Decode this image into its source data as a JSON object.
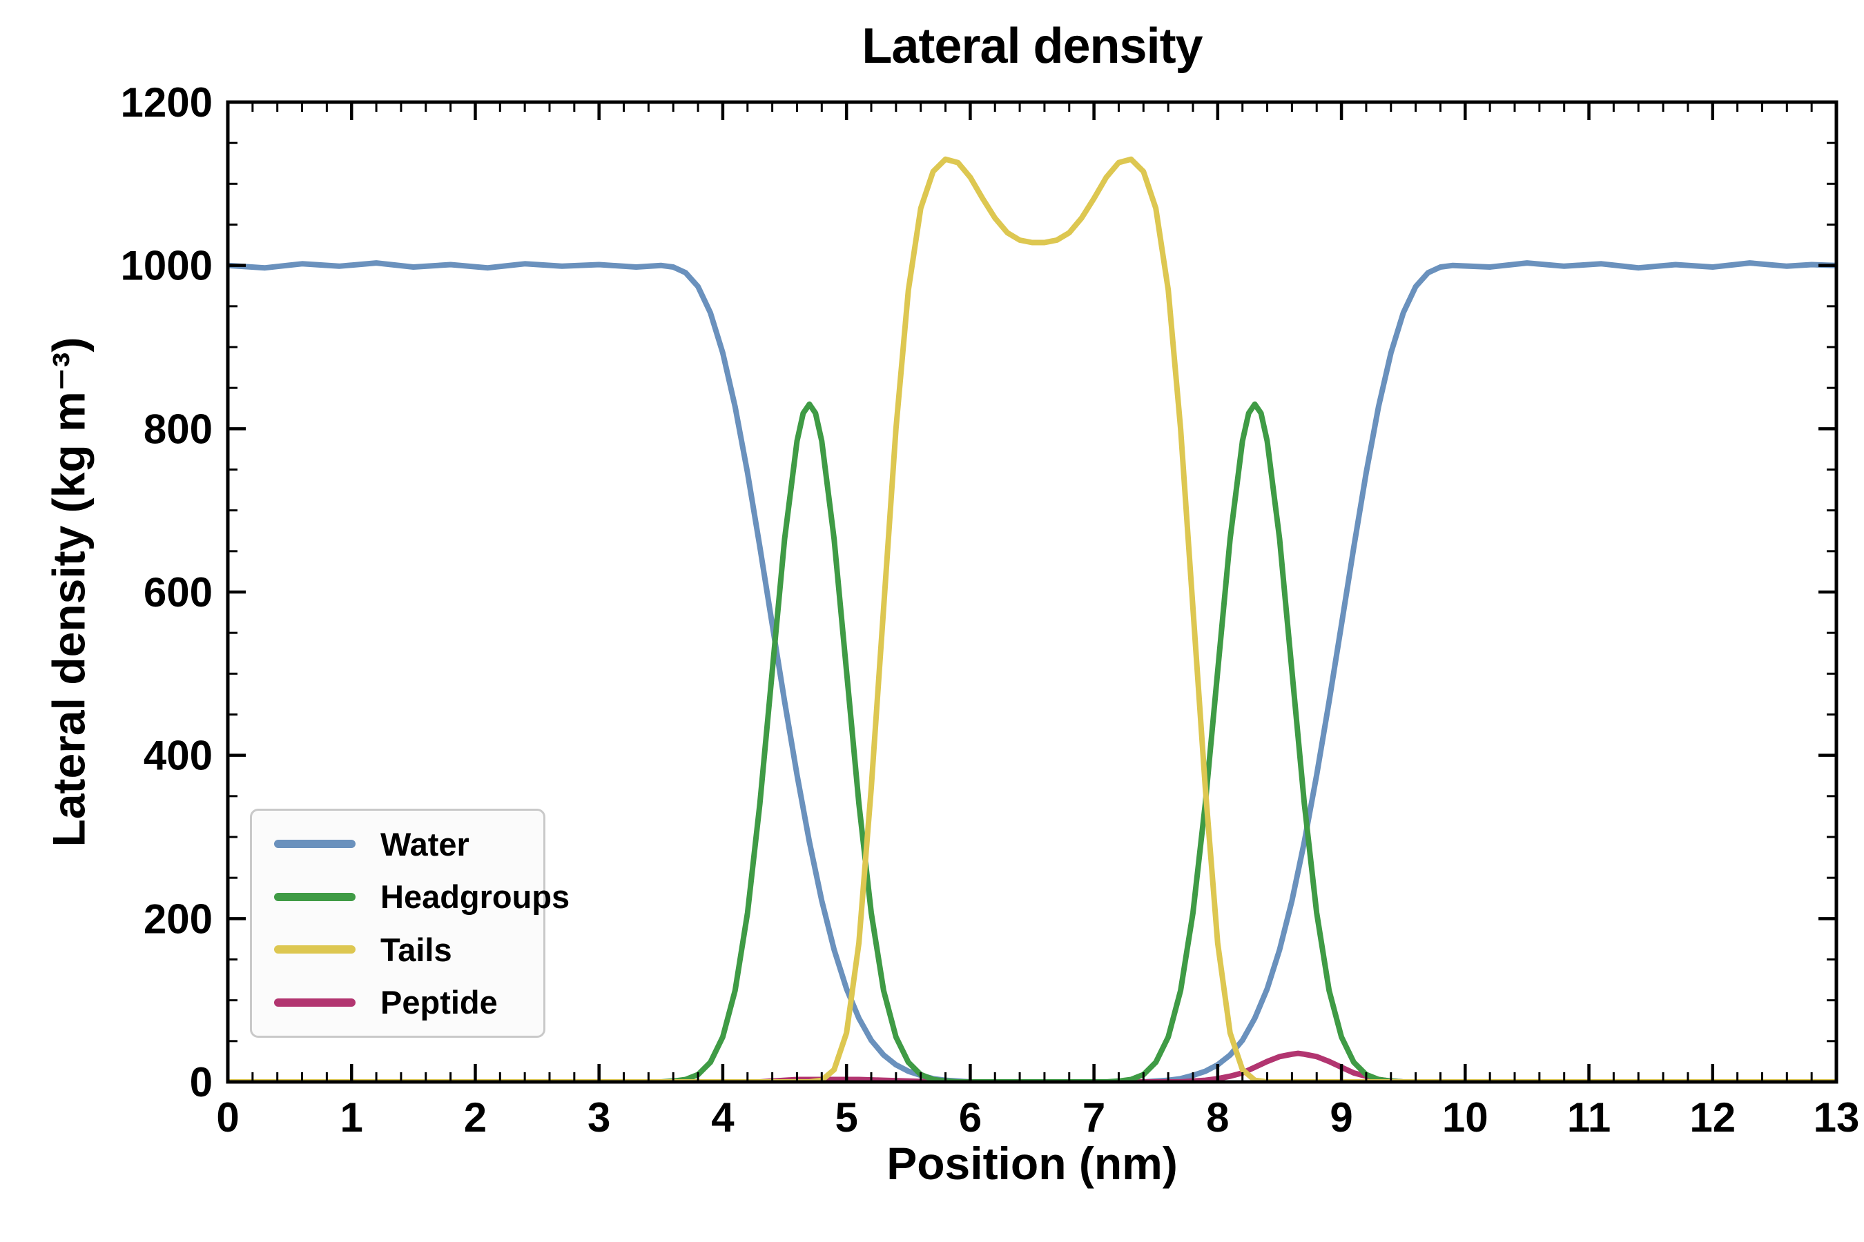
{
  "chart_data": {
    "type": "line",
    "title": "Lateral density",
    "xlabel": "Position (nm)",
    "ylabel": "Lateral density (kg m⁻³)",
    "xlim": [
      0,
      13
    ],
    "ylim": [
      0,
      1200
    ],
    "x_ticks": [
      0,
      1,
      2,
      3,
      4,
      5,
      6,
      7,
      8,
      9,
      10,
      11,
      12,
      13
    ],
    "y_ticks": [
      0,
      200,
      400,
      600,
      800,
      1000,
      1200
    ],
    "x_minor_step": 0.2,
    "y_minor_step": 50,
    "grid": false,
    "legend_position": "lower-left",
    "background": "#ffffff",
    "axis_color": "#000000",
    "legend_bg": "#fbfbfb",
    "legend_border": "#c9c9c9",
    "series": [
      {
        "name": "Water",
        "color": "#6a91bd",
        "points": [
          [
            0.0,
            1000
          ],
          [
            0.3,
            997
          ],
          [
            0.6,
            1002
          ],
          [
            0.9,
            999
          ],
          [
            1.2,
            1003
          ],
          [
            1.5,
            998
          ],
          [
            1.8,
            1001
          ],
          [
            2.1,
            997
          ],
          [
            2.4,
            1002
          ],
          [
            2.7,
            999
          ],
          [
            3.0,
            1001
          ],
          [
            3.3,
            998
          ],
          [
            3.5,
            1000
          ],
          [
            3.6,
            998
          ],
          [
            3.7,
            991
          ],
          [
            3.8,
            974
          ],
          [
            3.9,
            942
          ],
          [
            4.0,
            893
          ],
          [
            4.1,
            827
          ],
          [
            4.2,
            746
          ],
          [
            4.3,
            655
          ],
          [
            4.4,
            560
          ],
          [
            4.5,
            466
          ],
          [
            4.6,
            376
          ],
          [
            4.7,
            294
          ],
          [
            4.8,
            222
          ],
          [
            4.9,
            162
          ],
          [
            5.0,
            114
          ],
          [
            5.1,
            78
          ],
          [
            5.2,
            51
          ],
          [
            5.3,
            33
          ],
          [
            5.4,
            21
          ],
          [
            5.5,
            13
          ],
          [
            5.6,
            8
          ],
          [
            5.7,
            4
          ],
          [
            5.8,
            2
          ],
          [
            5.9,
            1
          ],
          [
            6.0,
            0
          ],
          [
            7.4,
            0
          ],
          [
            7.5,
            1
          ],
          [
            7.6,
            2
          ],
          [
            7.7,
            4
          ],
          [
            7.8,
            8
          ],
          [
            7.9,
            13
          ],
          [
            8.0,
            21
          ],
          [
            8.1,
            33
          ],
          [
            8.2,
            51
          ],
          [
            8.3,
            78
          ],
          [
            8.4,
            114
          ],
          [
            8.5,
            162
          ],
          [
            8.6,
            222
          ],
          [
            8.7,
            294
          ],
          [
            8.8,
            376
          ],
          [
            8.9,
            466
          ],
          [
            9.0,
            560
          ],
          [
            9.1,
            655
          ],
          [
            9.2,
            746
          ],
          [
            9.3,
            827
          ],
          [
            9.4,
            893
          ],
          [
            9.5,
            942
          ],
          [
            9.6,
            974
          ],
          [
            9.7,
            991
          ],
          [
            9.8,
            998
          ],
          [
            9.9,
            1000
          ],
          [
            10.2,
            998
          ],
          [
            10.5,
            1003
          ],
          [
            10.8,
            999
          ],
          [
            11.1,
            1002
          ],
          [
            11.4,
            997
          ],
          [
            11.7,
            1001
          ],
          [
            12.0,
            998
          ],
          [
            12.3,
            1003
          ],
          [
            12.6,
            999
          ],
          [
            12.8,
            1001
          ],
          [
            13.0,
            1000
          ]
        ]
      },
      {
        "name": "Headgroups",
        "color": "#3f9b45",
        "points": [
          [
            0.0,
            0
          ],
          [
            3.5,
            0
          ],
          [
            3.6,
            1
          ],
          [
            3.7,
            3
          ],
          [
            3.8,
            9
          ],
          [
            3.9,
            24
          ],
          [
            4.0,
            55
          ],
          [
            4.1,
            112
          ],
          [
            4.2,
            207
          ],
          [
            4.3,
            341
          ],
          [
            4.4,
            503
          ],
          [
            4.5,
            665
          ],
          [
            4.6,
            785
          ],
          [
            4.65,
            819
          ],
          [
            4.7,
            830
          ],
          [
            4.75,
            819
          ],
          [
            4.8,
            785
          ],
          [
            4.9,
            665
          ],
          [
            5.0,
            503
          ],
          [
            5.1,
            341
          ],
          [
            5.2,
            207
          ],
          [
            5.3,
            112
          ],
          [
            5.4,
            55
          ],
          [
            5.5,
            24
          ],
          [
            5.6,
            9
          ],
          [
            5.7,
            3
          ],
          [
            5.8,
            1
          ],
          [
            5.9,
            0
          ],
          [
            7.1,
            0
          ],
          [
            7.2,
            1
          ],
          [
            7.3,
            3
          ],
          [
            7.4,
            9
          ],
          [
            7.5,
            24
          ],
          [
            7.6,
            55
          ],
          [
            7.7,
            112
          ],
          [
            7.8,
            207
          ],
          [
            7.9,
            341
          ],
          [
            8.0,
            503
          ],
          [
            8.1,
            665
          ],
          [
            8.2,
            785
          ],
          [
            8.25,
            819
          ],
          [
            8.3,
            830
          ],
          [
            8.35,
            819
          ],
          [
            8.4,
            785
          ],
          [
            8.5,
            665
          ],
          [
            8.6,
            503
          ],
          [
            8.7,
            341
          ],
          [
            8.8,
            207
          ],
          [
            8.9,
            112
          ],
          [
            9.0,
            55
          ],
          [
            9.1,
            24
          ],
          [
            9.2,
            9
          ],
          [
            9.3,
            3
          ],
          [
            9.4,
            1
          ],
          [
            9.5,
            0
          ],
          [
            13.0,
            0
          ]
        ]
      },
      {
        "name": "Tails",
        "color": "#ddc751",
        "points": [
          [
            0.0,
            0
          ],
          [
            4.7,
            0
          ],
          [
            4.8,
            2
          ],
          [
            4.9,
            15
          ],
          [
            5.0,
            60
          ],
          [
            5.1,
            170
          ],
          [
            5.2,
            360
          ],
          [
            5.3,
            580
          ],
          [
            5.4,
            800
          ],
          [
            5.5,
            970
          ],
          [
            5.6,
            1070
          ],
          [
            5.7,
            1115
          ],
          [
            5.8,
            1130
          ],
          [
            5.9,
            1126
          ],
          [
            6.0,
            1108
          ],
          [
            6.1,
            1082
          ],
          [
            6.2,
            1058
          ],
          [
            6.3,
            1040
          ],
          [
            6.4,
            1031
          ],
          [
            6.5,
            1028
          ],
          [
            6.6,
            1028
          ],
          [
            6.7,
            1031
          ],
          [
            6.8,
            1040
          ],
          [
            6.9,
            1058
          ],
          [
            7.0,
            1082
          ],
          [
            7.1,
            1108
          ],
          [
            7.2,
            1126
          ],
          [
            7.3,
            1130
          ],
          [
            7.4,
            1115
          ],
          [
            7.5,
            1070
          ],
          [
            7.6,
            970
          ],
          [
            7.7,
            800
          ],
          [
            7.8,
            580
          ],
          [
            7.9,
            360
          ],
          [
            8.0,
            170
          ],
          [
            8.1,
            60
          ],
          [
            8.2,
            15
          ],
          [
            8.3,
            2
          ],
          [
            8.4,
            0
          ],
          [
            13.0,
            0
          ]
        ]
      },
      {
        "name": "Peptide",
        "color": "#b23570",
        "points": [
          [
            0.0,
            0
          ],
          [
            4.3,
            0
          ],
          [
            4.4,
            1
          ],
          [
            4.5,
            2
          ],
          [
            4.6,
            3
          ],
          [
            5.1,
            3
          ],
          [
            5.3,
            2
          ],
          [
            5.5,
            1
          ],
          [
            5.7,
            0
          ],
          [
            7.7,
            0
          ],
          [
            7.8,
            1
          ],
          [
            7.9,
            2
          ],
          [
            8.0,
            4
          ],
          [
            8.1,
            7
          ],
          [
            8.2,
            11
          ],
          [
            8.3,
            18
          ],
          [
            8.4,
            25
          ],
          [
            8.5,
            31
          ],
          [
            8.6,
            34
          ],
          [
            8.65,
            35
          ],
          [
            8.7,
            34
          ],
          [
            8.8,
            31
          ],
          [
            8.9,
            25
          ],
          [
            9.0,
            18
          ],
          [
            9.1,
            11
          ],
          [
            9.2,
            7
          ],
          [
            9.3,
            3
          ],
          [
            9.4,
            1
          ],
          [
            9.5,
            0
          ],
          [
            13.0,
            0
          ]
        ]
      }
    ]
  }
}
